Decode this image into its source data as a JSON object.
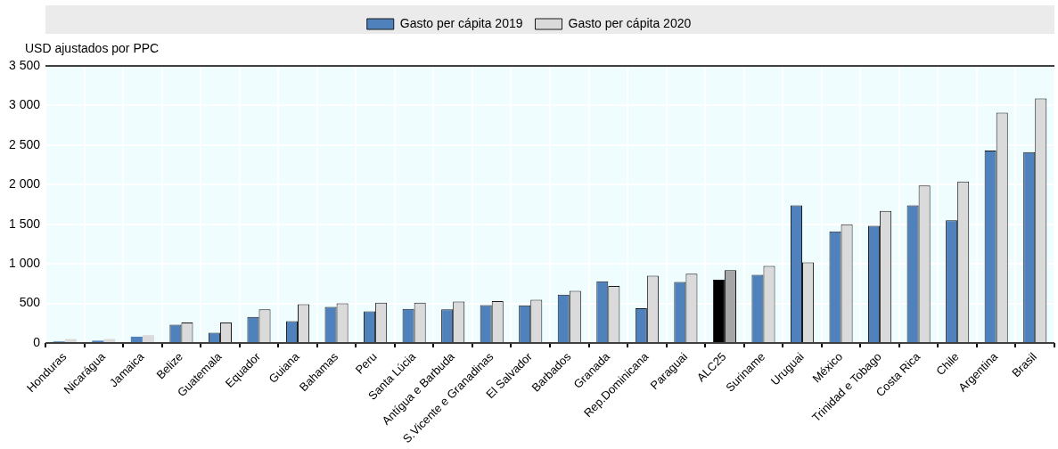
{
  "chart_data": {
    "type": "bar",
    "ylabel": "USD ajustados por PPC",
    "categories": [
      "Honduras",
      "Nicarágua",
      "Jamaica",
      "Belize",
      "Guatemala",
      "Equador",
      "Guiana",
      "Bahamas",
      "Peru",
      "Santa Lúcia",
      "Antígua e Barbuda",
      "S.Vicente e Granadinas",
      "El Salvador",
      "Barbados",
      "Granada",
      "Rep.Dominicana",
      "Paraguai",
      "ALC25",
      "Suriname",
      "Uruguai",
      "México",
      "Trinidad e Tobago",
      "Costa Rica",
      "Chile",
      "Argentina",
      "Brasil"
    ],
    "series": [
      {
        "name": "Gasto per cápita 2019",
        "color": "#4f81bd",
        "colors": [
          "#4f81bd",
          "#4f81bd",
          "#4f81bd",
          "#4f81bd",
          "#4f81bd",
          "#4f81bd",
          "#4f81bd",
          "#4f81bd",
          "#4f81bd",
          "#4f81bd",
          "#4f81bd",
          "#4f81bd",
          "#4f81bd",
          "#4f81bd",
          "#4f81bd",
          "#4f81bd",
          "#4f81bd",
          "#000000",
          "#4f81bd",
          "#4f81bd",
          "#4f81bd",
          "#4f81bd",
          "#4f81bd",
          "#4f81bd",
          "#4f81bd",
          "#4f81bd"
        ],
        "values": [
          20,
          30,
          80,
          230,
          130,
          330,
          275,
          455,
          400,
          430,
          425,
          480,
          475,
          610,
          780,
          440,
          770,
          800,
          860,
          1740,
          1410,
          1480,
          1740,
          1550,
          2430,
          2410
        ]
      },
      {
        "name": "Gasto per cápita 2020",
        "color": "#dadada",
        "colors": [
          "#dadada",
          "#dadada",
          "#dadada",
          "#dadada",
          "#dadada",
          "#dadada",
          "#dadada",
          "#dadada",
          "#dadada",
          "#dadada",
          "#dadada",
          "#dadada",
          "#dadada",
          "#dadada",
          "#dadada",
          "#dadada",
          "#dadada",
          "#a6a6a6",
          "#dadada",
          "#dadada",
          "#dadada",
          "#dadada",
          "#dadada",
          "#dadada",
          "#dadada",
          "#dadada"
        ],
        "values": [
          50,
          50,
          100,
          260,
          260,
          425,
          490,
          500,
          510,
          510,
          525,
          530,
          545,
          660,
          720,
          850,
          875,
          920,
          975,
          1020,
          1500,
          1670,
          1990,
          2040,
          2910,
          3090
        ]
      }
    ],
    "ylim": [
      0,
      3500
    ],
    "yticks": [
      {
        "value": 0,
        "label": "0"
      },
      {
        "value": 500,
        "label": "500"
      },
      {
        "value": 1000,
        "label": "1 000"
      },
      {
        "value": 1500,
        "label": "1 500"
      },
      {
        "value": 2000,
        "label": "2 000"
      },
      {
        "value": 2500,
        "label": "2 500"
      },
      {
        "value": 3000,
        "label": "3 000"
      },
      {
        "value": 3500,
        "label": "3 500"
      }
    ],
    "grid": true,
    "legend": "top"
  }
}
